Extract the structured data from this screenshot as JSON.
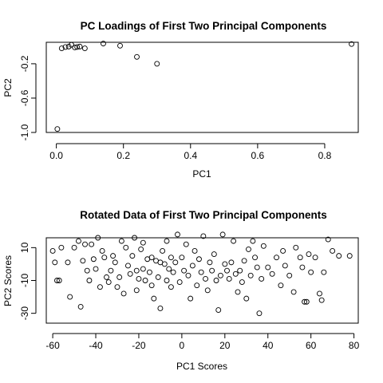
{
  "chart_data": [
    {
      "type": "scatter",
      "title": "PC Loadings of First Two Principal Components",
      "xlabel": "PC1",
      "ylabel": "PC2",
      "xlim": [
        -0.03,
        0.9
      ],
      "ylim": [
        -1.0,
        0.05
      ],
      "x_ticks": [
        0.0,
        0.2,
        0.4,
        0.6,
        0.8
      ],
      "x_tick_labels": [
        "0.0",
        "0.2",
        "0.4",
        "0.6",
        "0.8"
      ],
      "y_ticks": [
        -1.0,
        -0.6,
        -0.2
      ],
      "y_tick_labels": [
        "-1.0",
        "-0.6",
        "-0.2"
      ],
      "grid": false,
      "legend": "none",
      "points": [
        {
          "x": 0.003,
          "y": -0.96
        },
        {
          "x": 0.016,
          "y": -0.02
        },
        {
          "x": 0.027,
          "y": -0.005
        },
        {
          "x": 0.037,
          "y": 0.0
        },
        {
          "x": 0.045,
          "y": 0.02
        },
        {
          "x": 0.055,
          "y": -0.01
        },
        {
          "x": 0.062,
          "y": -0.005
        },
        {
          "x": 0.07,
          "y": 0.0
        },
        {
          "x": 0.085,
          "y": -0.02
        },
        {
          "x": 0.14,
          "y": 0.035
        },
        {
          "x": 0.19,
          "y": 0.01
        },
        {
          "x": 0.24,
          "y": -0.12
        },
        {
          "x": 0.3,
          "y": -0.2
        },
        {
          "x": 0.88,
          "y": 0.03
        }
      ]
    },
    {
      "type": "scatter",
      "title": "Rotated Data of First Two Principal Components",
      "xlabel": "PC1 Scores",
      "ylabel": "PC2 Scores",
      "xlim": [
        -63,
        82
      ],
      "ylim": [
        -36,
        16
      ],
      "x_ticks": [
        -60,
        -40,
        -20,
        0,
        20,
        40,
        60,
        80
      ],
      "x_tick_labels": [
        "-60",
        "-40",
        "-20",
        "0",
        "20",
        "40",
        "60",
        "80"
      ],
      "y_ticks": [
        -30,
        -10,
        10
      ],
      "y_tick_labels": [
        "-30",
        "-10",
        "10"
      ],
      "grid": false,
      "legend": "none",
      "points": [
        {
          "x": -60,
          "y": 8
        },
        {
          "x": -59,
          "y": 1
        },
        {
          "x": -58,
          "y": -10
        },
        {
          "x": -57,
          "y": -10
        },
        {
          "x": -56,
          "y": 10
        },
        {
          "x": -53,
          "y": 1
        },
        {
          "x": -52,
          "y": -20
        },
        {
          "x": -50,
          "y": 10
        },
        {
          "x": -48,
          "y": 14
        },
        {
          "x": -47,
          "y": -26
        },
        {
          "x": -46,
          "y": 2
        },
        {
          "x": -45,
          "y": 12
        },
        {
          "x": -44,
          "y": -4
        },
        {
          "x": -43,
          "y": -10
        },
        {
          "x": -42,
          "y": 12
        },
        {
          "x": -41,
          "y": 3
        },
        {
          "x": -40,
          "y": -3
        },
        {
          "x": -39,
          "y": 16
        },
        {
          "x": -38,
          "y": -14
        },
        {
          "x": -37,
          "y": 8
        },
        {
          "x": -36,
          "y": 4
        },
        {
          "x": -35,
          "y": -8
        },
        {
          "x": -34,
          "y": -11
        },
        {
          "x": -33,
          "y": -4
        },
        {
          "x": -32,
          "y": 5
        },
        {
          "x": -31,
          "y": 1
        },
        {
          "x": -30,
          "y": -14
        },
        {
          "x": -29,
          "y": -8
        },
        {
          "x": -28,
          "y": 14
        },
        {
          "x": -27,
          "y": -18
        },
        {
          "x": -26,
          "y": 10
        },
        {
          "x": -25,
          "y": -1
        },
        {
          "x": -24,
          "y": -6
        },
        {
          "x": -23,
          "y": 5
        },
        {
          "x": -22,
          "y": 16
        },
        {
          "x": -21,
          "y": -16
        },
        {
          "x": -21,
          "y": -4
        },
        {
          "x": -20,
          "y": -9
        },
        {
          "x": -19,
          "y": 9
        },
        {
          "x": -18,
          "y": -3
        },
        {
          "x": -18,
          "y": 13
        },
        {
          "x": -17,
          "y": -10
        },
        {
          "x": -16,
          "y": 3
        },
        {
          "x": -15,
          "y": -5
        },
        {
          "x": -14,
          "y": 4
        },
        {
          "x": -14,
          "y": -13
        },
        {
          "x": -13,
          "y": -21
        },
        {
          "x": -12,
          "y": 2
        },
        {
          "x": -11,
          "y": -8
        },
        {
          "x": -10,
          "y": 1
        },
        {
          "x": -10,
          "y": -27
        },
        {
          "x": -9,
          "y": 8
        },
        {
          "x": -8,
          "y": 0
        },
        {
          "x": -7,
          "y": -10
        },
        {
          "x": -7,
          "y": 14
        },
        {
          "x": -6,
          "y": -3
        },
        {
          "x": -5,
          "y": 4
        },
        {
          "x": -5,
          "y": -14
        },
        {
          "x": -4,
          "y": -5
        },
        {
          "x": -3,
          "y": 1
        },
        {
          "x": -2,
          "y": 18
        },
        {
          "x": -1,
          "y": -11
        },
        {
          "x": 0,
          "y": 4
        },
        {
          "x": 1,
          "y": -4
        },
        {
          "x": 2,
          "y": 12
        },
        {
          "x": 3,
          "y": -7
        },
        {
          "x": 4,
          "y": -21
        },
        {
          "x": 5,
          "y": -1
        },
        {
          "x": 6,
          "y": 8
        },
        {
          "x": 7,
          "y": -13
        },
        {
          "x": 8,
          "y": 3
        },
        {
          "x": 9,
          "y": -5
        },
        {
          "x": 10,
          "y": 17
        },
        {
          "x": 11,
          "y": -9
        },
        {
          "x": 12,
          "y": -16
        },
        {
          "x": 13,
          "y": 1
        },
        {
          "x": 14,
          "y": -4
        },
        {
          "x": 15,
          "y": 6
        },
        {
          "x": 16,
          "y": -10
        },
        {
          "x": 17,
          "y": -28
        },
        {
          "x": 18,
          "y": -7
        },
        {
          "x": 19,
          "y": 18
        },
        {
          "x": 20,
          "y": 0
        },
        {
          "x": 21,
          "y": -4
        },
        {
          "x": 22,
          "y": -9
        },
        {
          "x": 23,
          "y": 1
        },
        {
          "x": 24,
          "y": 14
        },
        {
          "x": 25,
          "y": -6
        },
        {
          "x": 26,
          "y": -17
        },
        {
          "x": 27,
          "y": -4
        },
        {
          "x": 28,
          "y": -11
        },
        {
          "x": 29,
          "y": 2
        },
        {
          "x": 30,
          "y": -21
        },
        {
          "x": 31,
          "y": 9
        },
        {
          "x": 32,
          "y": -7
        },
        {
          "x": 33,
          "y": 14
        },
        {
          "x": 34,
          "y": 4
        },
        {
          "x": 35,
          "y": -2
        },
        {
          "x": 36,
          "y": -30
        },
        {
          "x": 37,
          "y": -9
        },
        {
          "x": 38,
          "y": 11
        },
        {
          "x": 40,
          "y": -2
        },
        {
          "x": 42,
          "y": -6
        },
        {
          "x": 44,
          "y": 4
        },
        {
          "x": 46,
          "y": -13
        },
        {
          "x": 47,
          "y": 8
        },
        {
          "x": 48,
          "y": -1
        },
        {
          "x": 50,
          "y": -7
        },
        {
          "x": 52,
          "y": -17
        },
        {
          "x": 53,
          "y": 10
        },
        {
          "x": 55,
          "y": 4
        },
        {
          "x": 56,
          "y": -2
        },
        {
          "x": 57,
          "y": -23
        },
        {
          "x": 58,
          "y": -23
        },
        {
          "x": 59,
          "y": 6
        },
        {
          "x": 60,
          "y": -5
        },
        {
          "x": 62,
          "y": 4
        },
        {
          "x": 64,
          "y": -18
        },
        {
          "x": 65,
          "y": -22
        },
        {
          "x": 66,
          "y": -5
        },
        {
          "x": 68,
          "y": 15
        },
        {
          "x": 70,
          "y": 8
        },
        {
          "x": 73,
          "y": 5
        },
        {
          "x": 78,
          "y": 5
        }
      ]
    }
  ]
}
